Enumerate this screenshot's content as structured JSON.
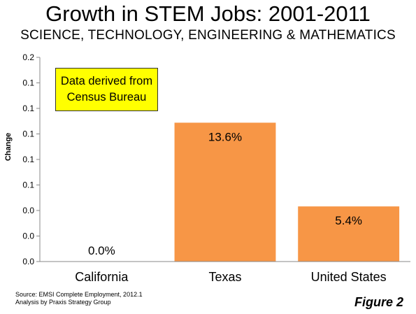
{
  "chart_data": {
    "type": "bar",
    "title": "Growth in STEM Jobs: 2001-2011",
    "subtitle": "SCIENCE, TECHNOLOGY, ENGINEERING & MATHEMATICS",
    "ylabel": "Change",
    "xlabel": "",
    "categories": [
      "California",
      "Texas",
      "United States"
    ],
    "values": [
      0.0,
      0.136,
      0.054
    ],
    "data_labels": [
      "0.0%",
      "13.6%",
      "5.4%"
    ],
    "ylim": [
      0,
      0.2
    ],
    "yticks": [
      0,
      0.025,
      0.05,
      0.075,
      0.1,
      0.125,
      0.15,
      0.175,
      0.2
    ],
    "ytick_labels": [
      "0.0",
      "0.0",
      "0.0",
      "0.1",
      "0.1",
      "0.1",
      "0.1",
      "0.1",
      "0.2"
    ],
    "bar_color": "#f79646",
    "grid": false,
    "annotation": "Data derived from Census Bureau",
    "source_lines": [
      "Source: EMSI Complete Employment, 2012.1",
      "Analysis by Praxis Strategy Group"
    ],
    "figure_label": "Figure 2"
  }
}
